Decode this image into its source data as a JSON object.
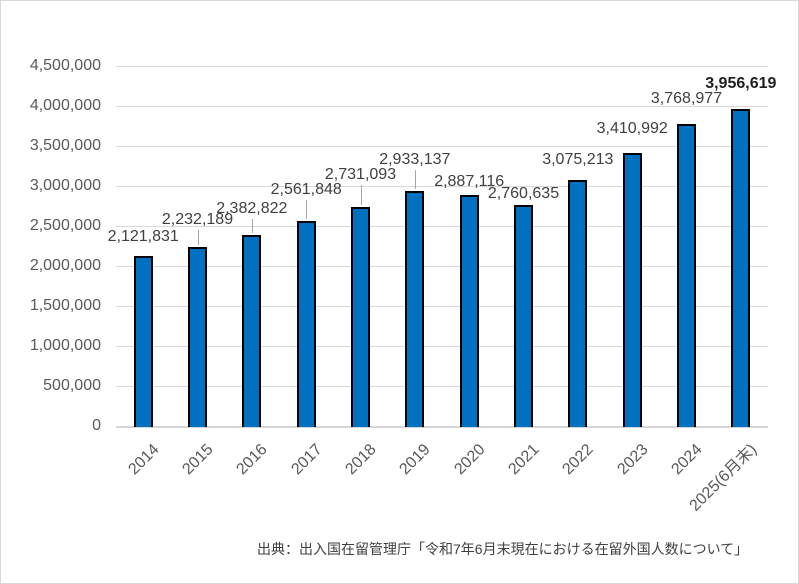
{
  "chart_data": {
    "type": "bar",
    "title": "",
    "categories": [
      "2014",
      "2015",
      "2016",
      "2017",
      "2018",
      "2019",
      "2020",
      "2021",
      "2022",
      "2023",
      "2024",
      "2025(6月末)"
    ],
    "values": [
      2121831,
      2232189,
      2382822,
      2561848,
      2731093,
      2933137,
      2887116,
      2760635,
      3075213,
      3410992,
      3768977,
      3956619
    ],
    "data_labels": [
      "2,121,831",
      "2,232,189",
      "2,382,822",
      "2,561,848",
      "2,731,093",
      "2,933,137",
      "2,887,116",
      "2,760,635",
      "3,075,213",
      "3,410,992",
      "3,768,977",
      "3,956,619"
    ],
    "ylim": [
      0,
      4500000
    ],
    "ytick_step": 500000,
    "ytick_labels": [
      "0",
      "500,000",
      "1,000,000",
      "1,500,000",
      "2,000,000",
      "2,500,000",
      "3,000,000",
      "3,500,000",
      "4,000,000",
      "4,500,000"
    ],
    "grid": true,
    "legend_position": "none",
    "xlabel": "",
    "ylabel": "",
    "bar_color": "#0070C0",
    "bar_border_color": "#000000",
    "gridline_color": "#D9D9D9",
    "axis_text_color": "#595959",
    "data_label_color": "#404040",
    "last_label_bold": true
  },
  "source_note": "出典：出入国在留管理庁「令和7年6月末現在における在留外国人数について」"
}
